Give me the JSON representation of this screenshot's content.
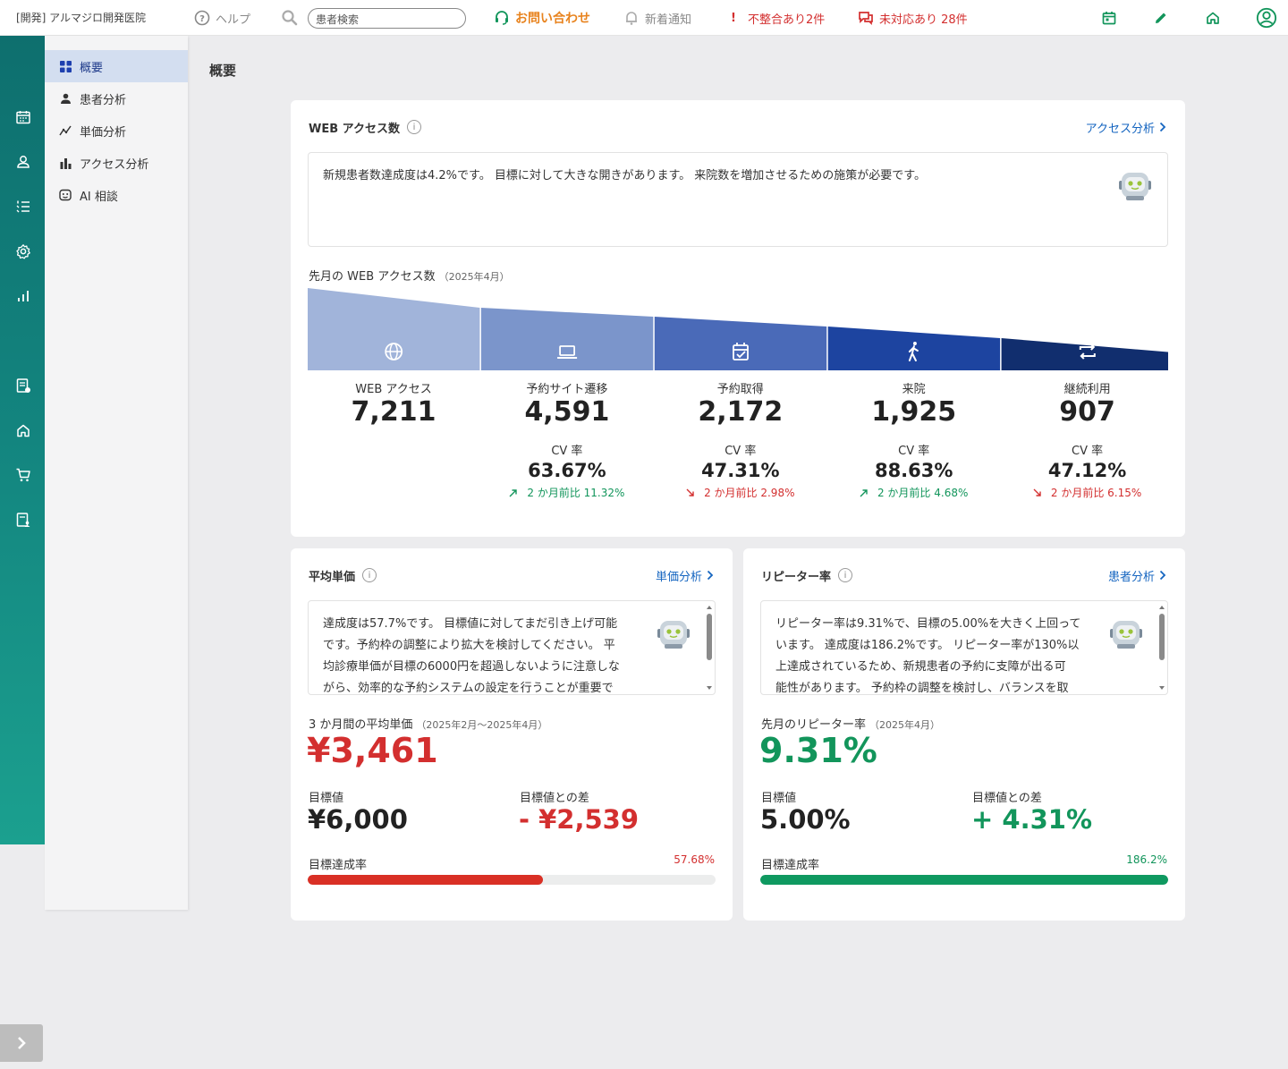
{
  "topbar": {
    "clinic": "[開発] アルマジロ開発医院",
    "help": "ヘルプ",
    "search_placeholder": "患者検索",
    "contact": "お問い合わせ",
    "notice": "新着通知",
    "mismatch": "不整合あり2件",
    "unresolved": "未対応あり 28件",
    "mismatch_mark": "!"
  },
  "subnav": {
    "items": [
      {
        "label": "概要",
        "icon": "grid-icon"
      },
      {
        "label": "患者分析",
        "icon": "person-icon"
      },
      {
        "label": "単価分析",
        "icon": "trend-icon"
      },
      {
        "label": "アクセス分析",
        "icon": "bar-chart-icon"
      },
      {
        "label": "AI 相談",
        "icon": "robot-face-icon"
      }
    ]
  },
  "page": {
    "title": "概要"
  },
  "web": {
    "title": "WEB アクセス数",
    "link": "アクセス分析",
    "ai_text": "新規患者数達成度は4.2%です。 目標に対して大きな開きがあります。 来院数を増加させるための施策が必要です。",
    "funnel_title": "先月の WEB アクセス数",
    "funnel_period": "（2025年4月）",
    "cv_label": "CV 率",
    "stages": [
      {
        "label": "WEB アクセス",
        "value": "7,211",
        "count": 7211,
        "color": "#a1b4da",
        "icon": "globe-icon"
      },
      {
        "label": "予約サイト遷移",
        "value": "4,591",
        "count": 4591,
        "color": "#7b95cb",
        "icon": "laptop-icon",
        "cv": "63.67%",
        "trend": "up",
        "compare": "2 か月前比 11.32%"
      },
      {
        "label": "予約取得",
        "value": "2,172",
        "count": 2172,
        "color": "#4a6ab8",
        "icon": "calendar-check-icon",
        "cv": "47.31%",
        "trend": "down",
        "compare": "2 か月前比 2.98%"
      },
      {
        "label": "来院",
        "value": "1,925",
        "count": 1925,
        "color": "#1d44a0",
        "icon": "walking-icon",
        "cv": "88.63%",
        "trend": "up",
        "compare": "2 か月前比 4.68%"
      },
      {
        "label": "継続利用",
        "value": "907",
        "count": 907,
        "color": "#112e6e",
        "icon": "repeat-icon",
        "cv": "47.12%",
        "trend": "down",
        "compare": "2 か月前比 6.15%"
      }
    ]
  },
  "price": {
    "title": "平均単価",
    "link": "単価分析",
    "ai_text_lines": [
      "達成度は57.7%です。 目標値に対してまだ引き上げ可能",
      "です。予約枠の調整により拡大を検討してください。 平",
      "均診療単価が目標の6000円を超過しないように注意しな",
      "がら、効率的な予約システムの設定を行うことが重要で"
    ],
    "sub": "3 か月間の平均単価",
    "period": "（2025年2月～2025年4月）",
    "value": "¥3,461",
    "target_label": "目標値",
    "target": "¥6,000",
    "diff_label": "目標値との差",
    "diff": "- ¥2,539",
    "rate_label": "目標達成率",
    "rate": "57.68%",
    "rate_fraction": 0.5768,
    "color": "#d93025"
  },
  "repeat": {
    "title": "リピーター率",
    "link": "患者分析",
    "ai_text_lines": [
      "リピーター率は9.31%で、目標の5.00%を大きく上回って",
      "います。 達成度は186.2%です。 リピーター率が130%以",
      "上達成されているため、新規患者の予約に支障が出る可",
      "能性があります。 予約枠の調整を検討し、バランスを取"
    ],
    "sub": "先月のリピーター率",
    "period": "（2025年4月）",
    "value": "9.31%",
    "target_label": "目標値",
    "target": "5.00%",
    "diff_label": "目標値との差",
    "diff": "+ 4.31%",
    "rate_label": "目標達成率",
    "rate": "186.2%",
    "rate_fraction": 1.0,
    "color": "#0f9960"
  }
}
